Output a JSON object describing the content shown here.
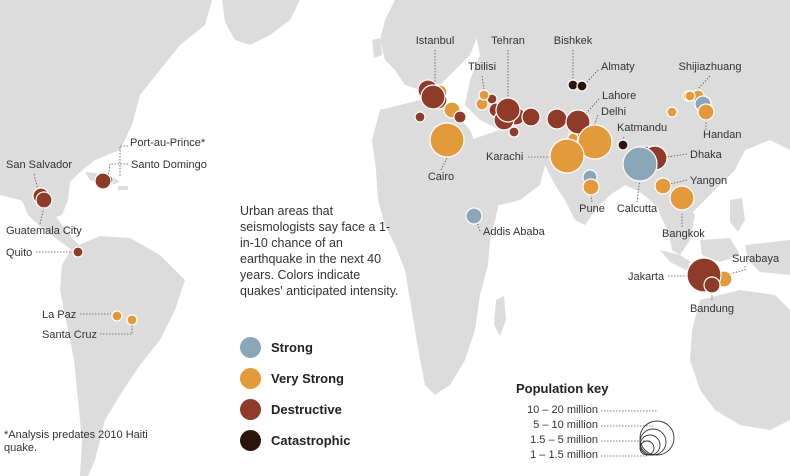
{
  "description": "Urban areas that seismologists say face a 1-in-10 chance of an earthquake in the next 40 years. Colors indicate quakes' anticipated intensity.",
  "colors": {
    "land": "#dcdcdc",
    "strong": "#8ba5b9",
    "very_strong": "#e39a3a",
    "destructive": "#8e3b2a",
    "catastrophic": "#2a140c"
  },
  "legend": [
    {
      "key": "strong",
      "label": "Strong"
    },
    {
      "key": "very_strong",
      "label": "Very Strong"
    },
    {
      "key": "destructive",
      "label": "Destructive"
    },
    {
      "key": "catastrophic",
      "label": "Catastrophic"
    }
  ],
  "population_key": {
    "title": "Population key",
    "labels": [
      "10 – 20 million",
      "5 – 10 million",
      "1.5 – 5 million",
      "1 – 1.5 million"
    ]
  },
  "note": "*Analysis predates 2010 Haiti quake.",
  "cities": [
    {
      "name": "Istanbul",
      "intensity": "destructive",
      "pop": "5–10 million"
    },
    {
      "name": "Tehran",
      "intensity": "destructive",
      "pop": "5–10 million"
    },
    {
      "name": "Bishkek",
      "intensity": "catastrophic",
      "pop": "1–1.5 million"
    },
    {
      "name": "Almaty",
      "intensity": "catastrophic",
      "pop": "1–1.5 million"
    },
    {
      "name": "Shijiazhuang",
      "intensity": "very_strong",
      "pop": "1–1.5 million"
    },
    {
      "name": "Tbilisi",
      "intensity": "very_strong",
      "pop": "1–1.5 million"
    },
    {
      "name": "Lahore",
      "intensity": "destructive",
      "pop": "5–10 million"
    },
    {
      "name": "Delhi",
      "intensity": "very_strong",
      "pop": "10–20 million"
    },
    {
      "name": "Handan",
      "intensity": "very_strong",
      "pop": "1.5–5 million"
    },
    {
      "name": "Katmandu",
      "intensity": "catastrophic",
      "pop": "1–1.5 million"
    },
    {
      "name": "Port-au-Prince*",
      "intensity": "destructive",
      "pop": "1–1.5 million"
    },
    {
      "name": "Santo Domingo",
      "intensity": "destructive",
      "pop": "1.5–5 million"
    },
    {
      "name": "San Salvador",
      "intensity": "destructive",
      "pop": "1.5–5 million"
    },
    {
      "name": "Cairo",
      "intensity": "very_strong",
      "pop": "10–20 million"
    },
    {
      "name": "Karachi",
      "intensity": "very_strong",
      "pop": "10–20 million"
    },
    {
      "name": "Dhaka",
      "intensity": "destructive",
      "pop": "5–10 million"
    },
    {
      "name": "Yangon",
      "intensity": "very_strong",
      "pop": "1.5–5 million"
    },
    {
      "name": "Calcutta",
      "intensity": "strong",
      "pop": "10–20 million"
    },
    {
      "name": "Pune",
      "intensity": "very_strong",
      "pop": "1.5–5 million"
    },
    {
      "name": "Guatemala City",
      "intensity": "destructive",
      "pop": "1.5–5 million"
    },
    {
      "name": "Addis Ababa",
      "intensity": "strong",
      "pop": "1.5–5 million"
    },
    {
      "name": "Bangkok",
      "intensity": "very_strong",
      "pop": "5–10 million"
    },
    {
      "name": "Quito",
      "intensity": "destructive",
      "pop": "1–1.5 million"
    },
    {
      "name": "Surabaya",
      "intensity": "very_strong",
      "pop": "1.5–5 million"
    },
    {
      "name": "Jakarta",
      "intensity": "destructive",
      "pop": "10–20 million"
    },
    {
      "name": "La Paz",
      "intensity": "very_strong",
      "pop": "1–1.5 million"
    },
    {
      "name": "Santa Cruz",
      "intensity": "very_strong",
      "pop": "1–1.5 million"
    },
    {
      "name": "Bandung",
      "intensity": "destructive",
      "pop": "1.5–5 million"
    }
  ]
}
